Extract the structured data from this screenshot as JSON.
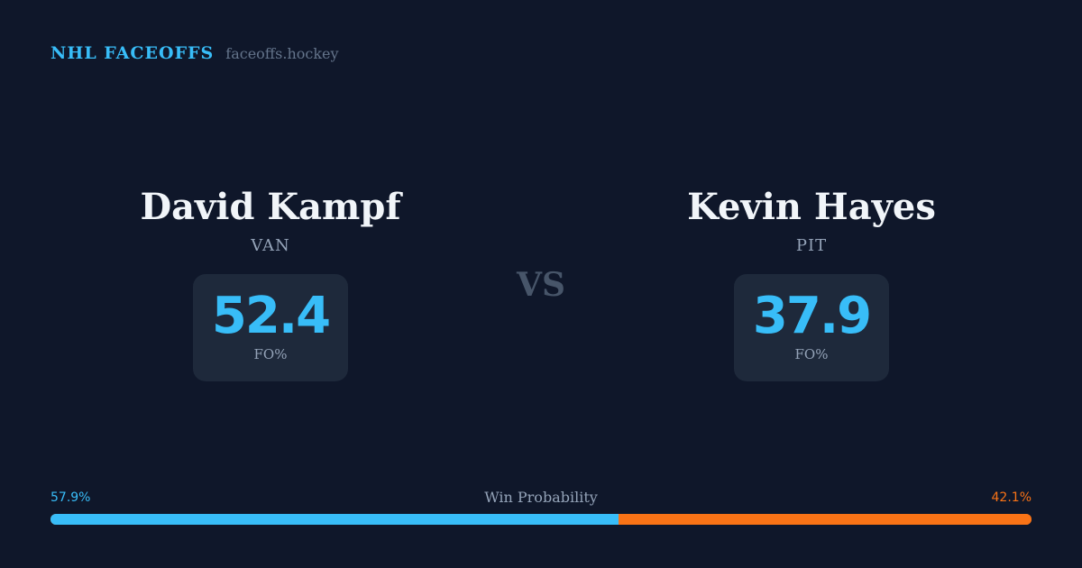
{
  "brand": {
    "name": "NHL FACEOFFS",
    "domain": "faceoffs.hockey"
  },
  "players": [
    {
      "name": "David Kampf",
      "team": "VAN",
      "stat_value": "52.4",
      "stat_label": "FO%"
    },
    {
      "name": "Kevin Hayes",
      "team": "PIT",
      "stat_value": "37.9",
      "stat_label": "FO%"
    }
  ],
  "vs_label": "VS",
  "win_probability": {
    "title": "Win Probability",
    "left_label": "57.9%",
    "right_label": "42.1%",
    "left_percent": 57.9,
    "right_percent": 42.1,
    "left_color": "#38bdf8",
    "right_color": "#f97316"
  }
}
